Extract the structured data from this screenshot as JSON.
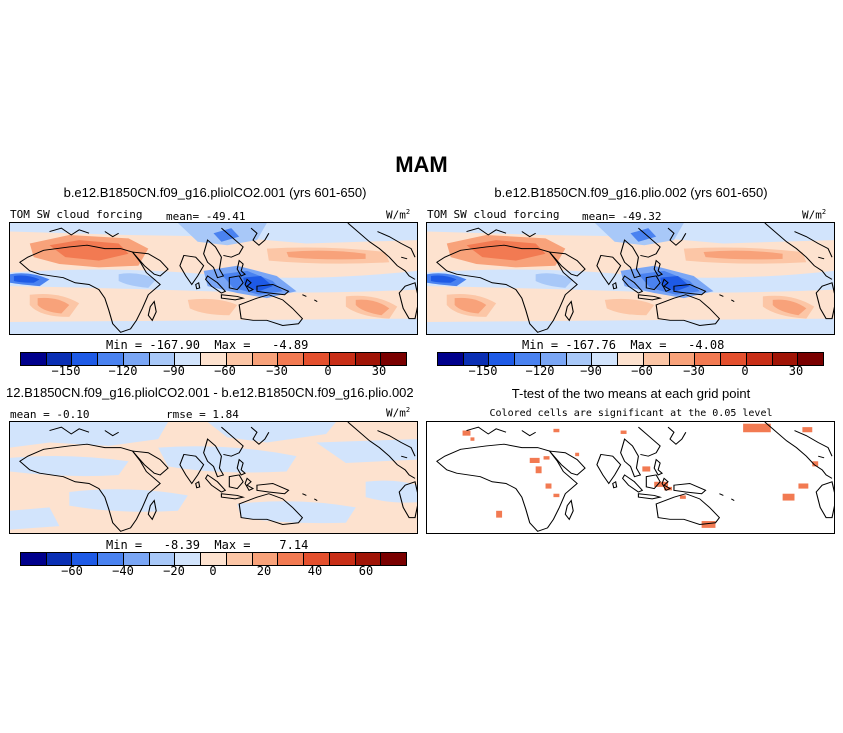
{
  "figure_title": "MAM",
  "palette_main": [
    "#00008c",
    "#0a2fb4",
    "#1e5ae6",
    "#4a82f0",
    "#7aa6f5",
    "#a8c8f8",
    "#d2e4fc",
    "#fde2cf",
    "#fcc6a6",
    "#f8a27a",
    "#f27a52",
    "#e4502e",
    "#c82e17",
    "#a01406",
    "#7a0000"
  ],
  "panel_a": {
    "title": "b.e12.B1850CN.f09_g16.pliolCO2.001 (yrs 601-650)",
    "var_label": "TOM SW cloud forcing",
    "mean_label": "mean=  -49.41",
    "units_label": "W/m",
    "units_exp": "2",
    "minmax": "Min = -167.90  Max =   -4.89",
    "ticks": [
      "−150",
      "−120",
      "−90",
      "−60",
      "−30",
      "0",
      "30"
    ]
  },
  "panel_b": {
    "title": "b.e12.B1850CN.f09_g16.plio.002 (yrs 601-650)",
    "var_label": "TOM SW cloud forcing",
    "mean_label": "mean=  -49.32",
    "units_label": "W/m",
    "units_exp": "2",
    "minmax": "Min = -167.76  Max =   -4.08",
    "ticks": [
      "−150",
      "−120",
      "−90",
      "−60",
      "−30",
      "0",
      "30"
    ]
  },
  "panel_c": {
    "title": "12.B1850CN.f09_g16.pliolCO2.001 - b.e12.B1850CN.f09_g16.plio.002",
    "mean_label": "mean =  -0.10",
    "rmse_label": "rmse =   1.84",
    "units_label": "W/m",
    "units_exp": "2",
    "minmax": "Min =   -8.39  Max =    7.14",
    "ticks": [
      "−60",
      "−40",
      "−20",
      "0",
      "20",
      "40",
      "60"
    ]
  },
  "panel_d": {
    "title": "T-test of the two means at each grid point",
    "subtitle": "Colored cells are significant at the 0.05 level"
  }
}
